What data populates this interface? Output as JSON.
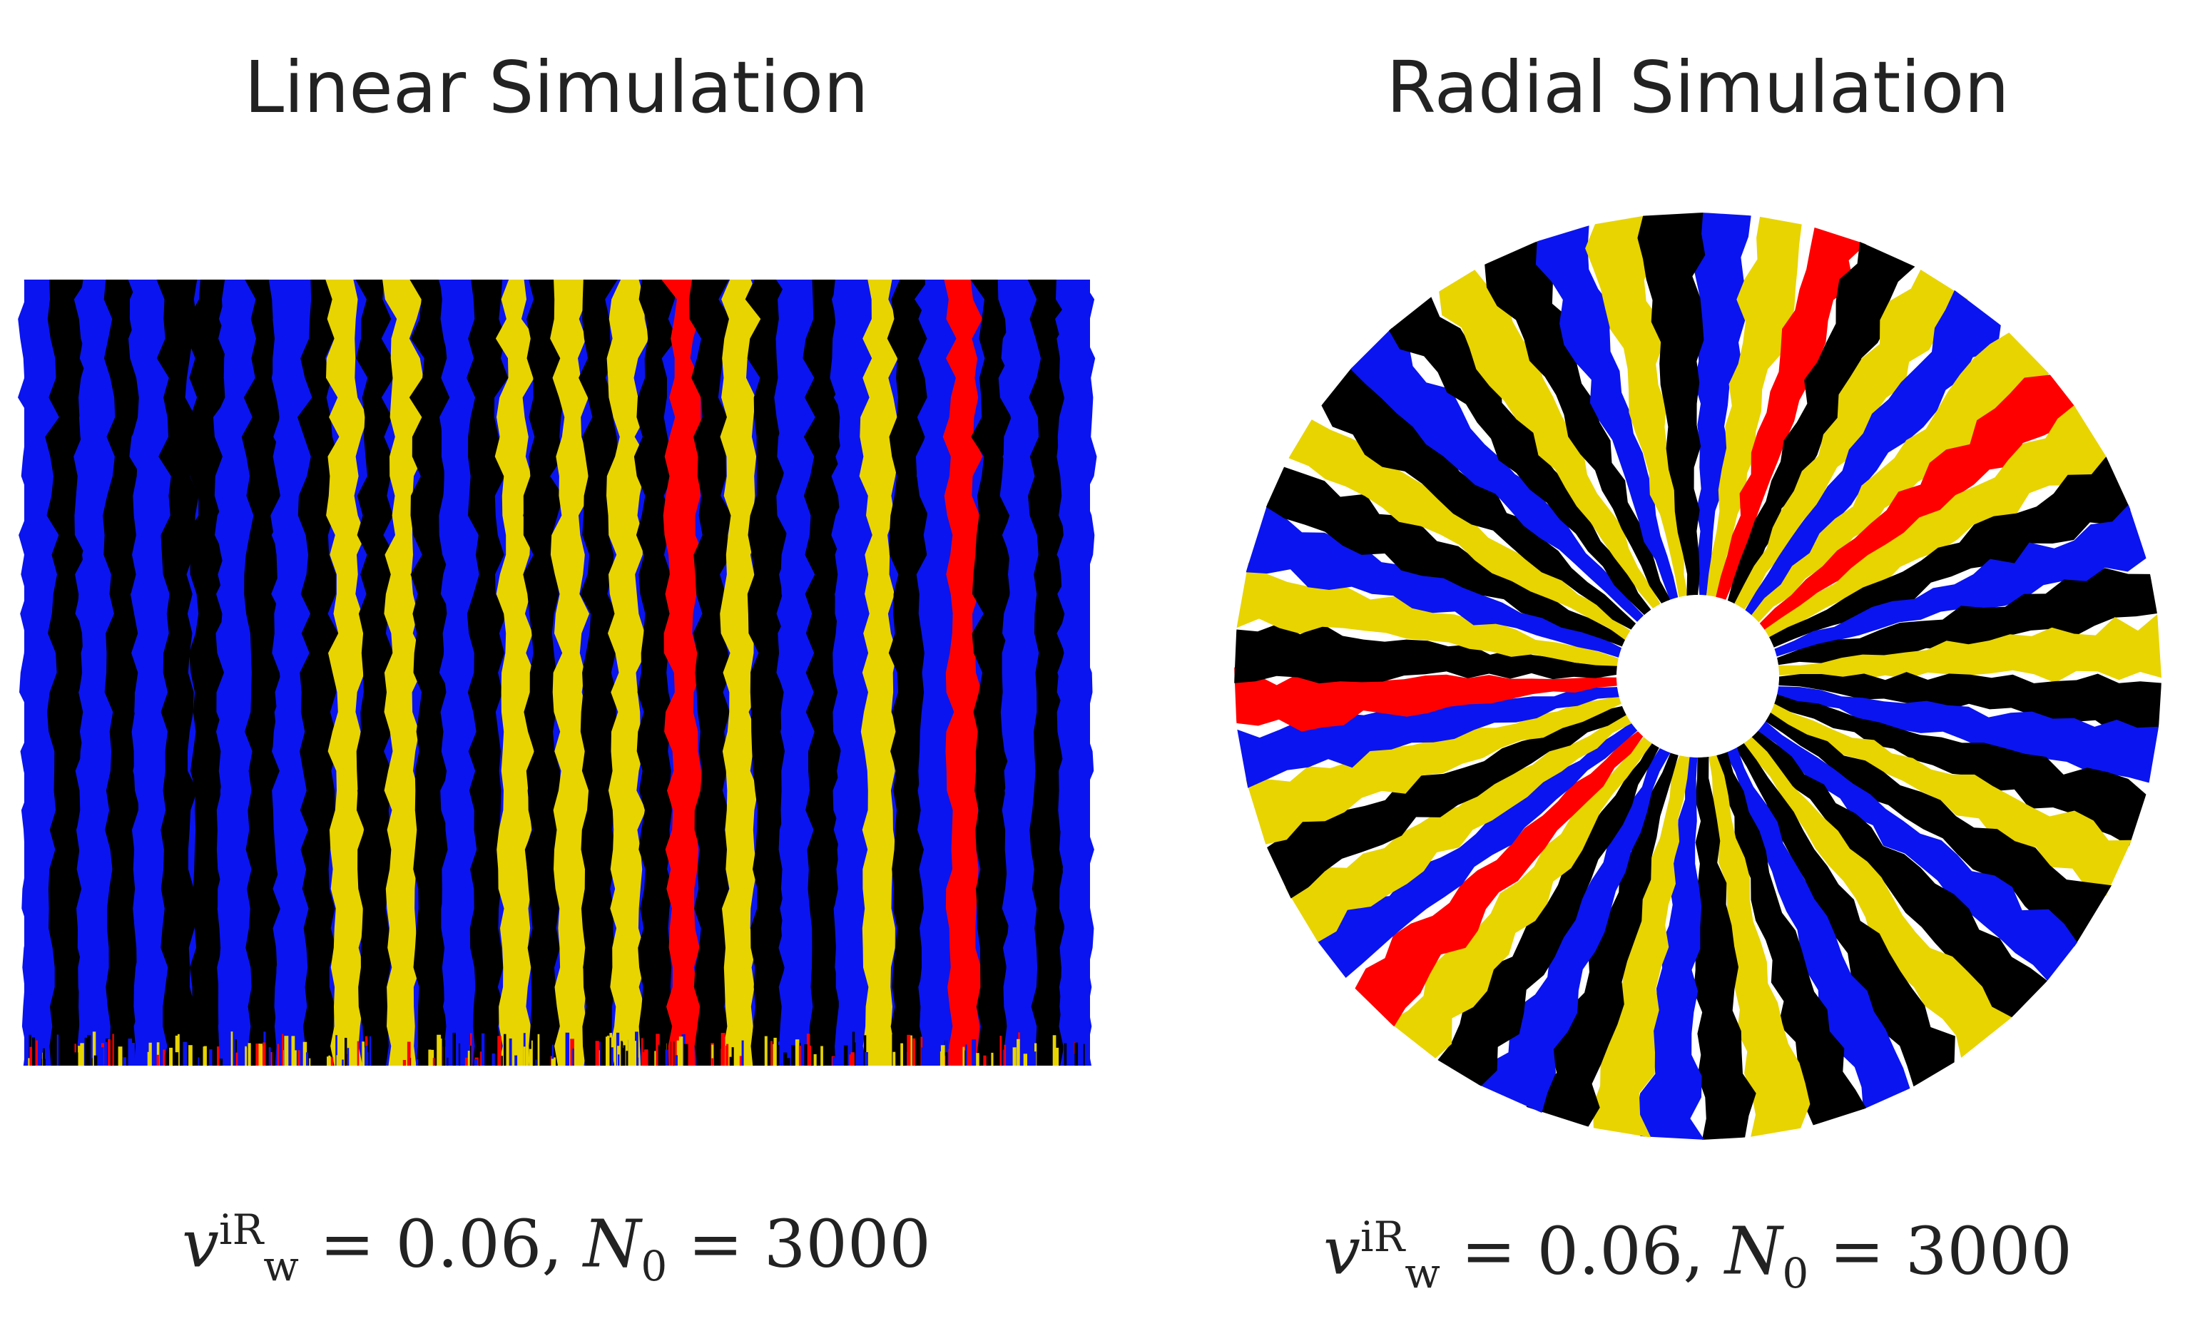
{
  "panels": {
    "left": {
      "title": "Linear Simulation",
      "caption": {
        "v_symbol": "v",
        "v_sup": "iR",
        "v_sub": "w",
        "v_value": "= 0.06,",
        "n_symbol": "N",
        "n_sub": "0",
        "n_value": "= 3000"
      }
    },
    "right": {
      "title": "Radial Simulation",
      "caption": {
        "v_symbol": "v",
        "v_sup": "iR",
        "v_sub": "w",
        "v_value": "= 0.06,",
        "n_symbol": "N",
        "n_sub": "0",
        "n_value": "= 3000"
      }
    }
  },
  "palette": {
    "black": "#000000",
    "blue": "#0a14f0",
    "yellow": "#e8d400",
    "red": "#ff0000"
  },
  "linear_stripes": [
    "blue",
    "black",
    "blue",
    "black",
    "blue",
    "black",
    "black",
    "blue",
    "black",
    "blue",
    "black",
    "yellow",
    "black",
    "yellow",
    "black",
    "blue",
    "black",
    "yellow",
    "black",
    "yellow",
    "black",
    "yellow",
    "black",
    "red",
    "black",
    "yellow",
    "black",
    "blue",
    "black",
    "blue",
    "yellow",
    "black",
    "blue",
    "red",
    "black",
    "blue",
    "black",
    "blue"
  ],
  "radial_sectors": [
    "blue",
    "yellow",
    "red",
    "black",
    "yellow",
    "blue",
    "yellow",
    "red",
    "yellow",
    "black",
    "blue",
    "black",
    "yellow",
    "black",
    "blue",
    "black",
    "yellow",
    "black",
    "blue",
    "black",
    "yellow",
    "black",
    "blue",
    "black",
    "yellow",
    "black",
    "blue",
    "yellow",
    "black",
    "blue",
    "black",
    "yellow",
    "red",
    "blue",
    "yellow",
    "black",
    "yellow",
    "blue",
    "red",
    "black",
    "yellow",
    "blue",
    "black",
    "yellow",
    "black",
    "blue",
    "black",
    "yellow",
    "black",
    "blue",
    "yellow",
    "black"
  ]
}
